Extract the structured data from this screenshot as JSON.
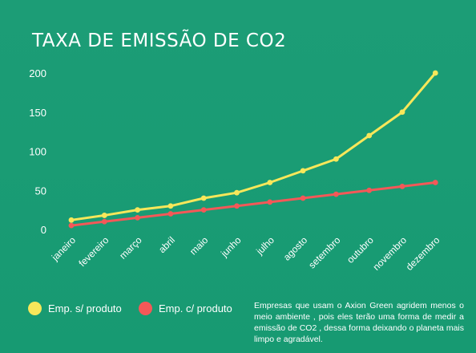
{
  "colors": {
    "background": "#1a9a73",
    "series_1": "#f7e75a",
    "series_2": "#f45858",
    "text": "#ffffff"
  },
  "title": "TAXA DE EMISSÃO DE CO2",
  "note": "Empresas que usam o  Axion Green  agridem menos o meio ambiente , pois  eles terão uma forma de medir a emissão de CO2 , dessa forma deixando o planeta mais limpo e agradável.",
  "chart_data": {
    "type": "line",
    "title": "TAXA DE EMISSÃO DE CO2",
    "xlabel": "",
    "ylabel": "",
    "ylim": [
      0,
      200
    ],
    "yticks": [
      "0",
      "50",
      "100",
      "150",
      "200"
    ],
    "categories": [
      "janeiro",
      "fevereiro",
      "março",
      "abril",
      "maio",
      "junho",
      "julho",
      "agosto",
      "setembro",
      "outubro",
      "novembro",
      "dezembro"
    ],
    "series": [
      {
        "name": "Emp. s/ produto",
        "color": "#f7e75a",
        "values": [
          12,
          18,
          25,
          30,
          40,
          47,
          60,
          75,
          90,
          120,
          150,
          200
        ]
      },
      {
        "name": "Emp. c/ produto",
        "color": "#f45858",
        "values": [
          5,
          10,
          15,
          20,
          25,
          30,
          35,
          40,
          45,
          50,
          55,
          60
        ]
      }
    ],
    "grid": false,
    "legend_position": "bottom-left"
  }
}
